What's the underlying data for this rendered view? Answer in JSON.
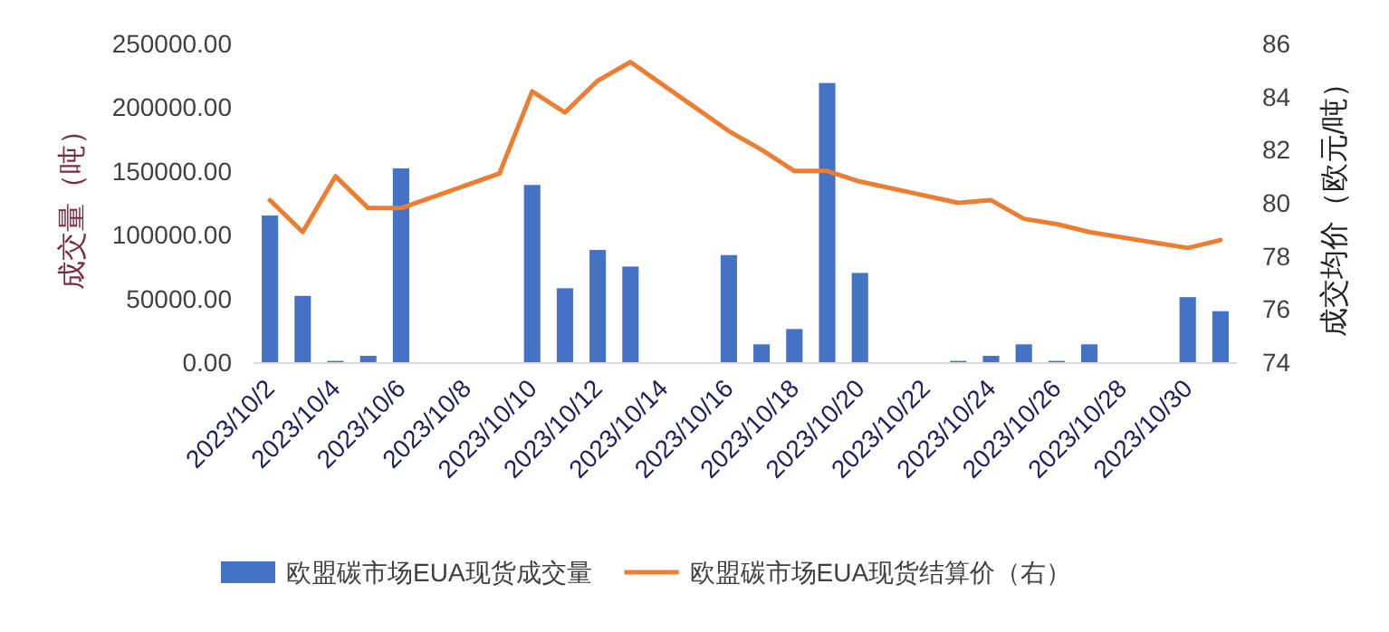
{
  "chart_data": {
    "type": "bar",
    "categories": [
      "2023/10/2",
      null,
      "2023/10/4",
      null,
      "2023/10/6",
      null,
      "2023/10/8",
      null,
      "2023/10/10",
      null,
      "2023/10/12",
      null,
      "2023/10/14",
      null,
      "2023/10/16",
      null,
      "2023/10/18",
      null,
      "2023/10/20",
      null,
      "2023/10/22",
      null,
      "2023/10/24",
      null,
      "2023/10/26",
      null,
      "2023/10/28",
      null,
      "2023/10/30",
      null
    ],
    "series": [
      {
        "name": "欧盟碳市场EUA现货成交量",
        "color": "#4472c4",
        "values": [
          115000,
          52000,
          1000,
          5000,
          152000,
          null,
          null,
          null,
          139000,
          58000,
          88000,
          75000,
          null,
          null,
          84000,
          14000,
          26000,
          219000,
          70000,
          null,
          null,
          1000,
          5000,
          14000,
          1000,
          14000,
          null,
          null,
          51000,
          40000
        ]
      },
      {
        "name": "欧盟碳市场EUA现货结算价（右）",
        "type": "line",
        "axis": "y2",
        "color": "#ed7d31",
        "values": [
          80.1,
          78.9,
          81.0,
          79.8,
          79.8,
          null,
          null,
          81.1,
          84.2,
          83.4,
          84.6,
          85.3,
          null,
          null,
          82.7,
          82.0,
          81.2,
          81.2,
          80.8,
          null,
          null,
          80.0,
          80.1,
          79.4,
          79.2,
          78.9,
          null,
          null,
          78.3,
          78.6
        ]
      }
    ],
    "ylabel": "成交量（吨）",
    "y2label": "成交均价（欧元/吨）",
    "ylim": [
      0,
      250000
    ],
    "yticks": [
      {
        "value": 0,
        "label": "0.00"
      },
      {
        "value": 50000,
        "label": "50000.00"
      },
      {
        "value": 100000,
        "label": "100000.00"
      },
      {
        "value": 150000,
        "label": "150000.00"
      },
      {
        "value": 200000,
        "label": "200000.00"
      },
      {
        "value": 250000,
        "label": "250000.00"
      }
    ],
    "y2lim": [
      74,
      86
    ],
    "y2ticks": [
      74,
      76,
      78,
      80,
      82,
      84,
      86
    ],
    "legend": "bottom"
  }
}
